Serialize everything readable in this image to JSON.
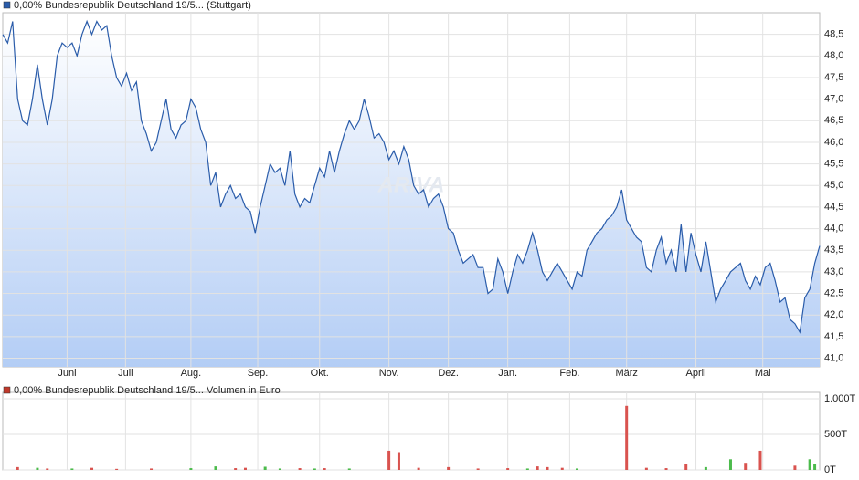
{
  "chart_data": [
    {
      "type": "line",
      "series": [
        {
          "name": "0,00% Bundesrepublik Deutschland 19/5... (Stuttgart)",
          "color": "#2a5caa",
          "values": [
            48.5,
            48.3,
            48.8,
            47.0,
            46.5,
            46.4,
            47.0,
            47.8,
            47.0,
            46.4,
            47.0,
            48.0,
            48.3,
            48.2,
            48.3,
            48.0,
            48.5,
            48.8,
            48.5,
            48.8,
            48.6,
            48.7,
            48.0,
            47.5,
            47.3,
            47.6,
            47.2,
            47.4,
            46.5,
            46.2,
            45.8,
            46.0,
            46.5,
            47.0,
            46.3,
            46.1,
            46.4,
            46.5,
            47.0,
            46.8,
            46.3,
            46.0,
            45.0,
            45.3,
            44.5,
            44.8,
            45.0,
            44.7,
            44.8,
            44.5,
            44.4,
            43.9,
            44.5,
            45.0,
            45.5,
            45.3,
            45.4,
            45.0,
            45.8,
            44.8,
            44.5,
            44.7,
            44.6,
            45.0,
            45.4,
            45.2,
            45.8,
            45.3,
            45.8,
            46.2,
            46.5,
            46.3,
            46.5,
            47.0,
            46.6,
            46.1,
            46.2,
            46.0,
            45.6,
            45.8,
            45.5,
            45.9,
            45.6,
            45.0,
            44.8,
            44.9,
            44.5,
            44.7,
            44.8,
            44.5,
            44.0,
            43.9,
            43.5,
            43.2,
            43.3,
            43.4,
            43.1,
            43.1,
            42.5,
            42.6,
            43.3,
            43.0,
            42.5,
            43.0,
            43.4,
            43.2,
            43.5,
            43.9,
            43.5,
            43.0,
            42.8,
            43.0,
            43.2,
            43.0,
            42.8,
            42.6,
            43.0,
            42.9,
            43.5,
            43.7,
            43.9,
            44.0,
            44.2,
            44.3,
            44.5,
            44.9,
            44.2,
            44.0,
            43.8,
            43.7,
            43.1,
            43.0,
            43.5,
            43.8,
            43.2,
            43.5,
            43.0,
            44.1,
            43.0,
            43.9,
            43.4,
            43.0,
            43.7,
            43.0,
            42.3,
            42.6,
            42.8,
            43.0,
            43.1,
            43.2,
            42.8,
            42.6,
            42.9,
            42.7,
            43.1,
            43.2,
            42.8,
            42.3,
            42.4,
            41.9,
            41.8,
            41.6,
            42.4,
            42.6,
            43.2,
            43.6
          ]
        }
      ],
      "xlim": [
        0,
        165
      ],
      "xticks": [
        {
          "value": 13,
          "label": "Juni"
        },
        {
          "value": 24.8,
          "label": "Juli"
        },
        {
          "value": 38,
          "label": "Aug."
        },
        {
          "value": 51.5,
          "label": "Sep."
        },
        {
          "value": 64,
          "label": "Okt."
        },
        {
          "value": 78,
          "label": "Nov."
        },
        {
          "value": 90,
          "label": "Dez."
        },
        {
          "value": 102,
          "label": "Jan."
        },
        {
          "value": 114.5,
          "label": "Feb."
        },
        {
          "value": 126,
          "label": "März"
        },
        {
          "value": 140,
          "label": "April"
        },
        {
          "value": 153.5,
          "label": "Mai"
        }
      ],
      "ylim": [
        40.8,
        49.0
      ],
      "yticks": [
        {
          "value": 41.0,
          "label": "41,0"
        },
        {
          "value": 41.5,
          "label": "41,5"
        },
        {
          "value": 42.0,
          "label": "42,0"
        },
        {
          "value": 42.5,
          "label": "42,5"
        },
        {
          "value": 43.0,
          "label": "43,0"
        },
        {
          "value": 43.5,
          "label": "43,5"
        },
        {
          "value": 44.0,
          "label": "44,0"
        },
        {
          "value": 44.5,
          "label": "44,5"
        },
        {
          "value": 45.0,
          "label": "45,0"
        },
        {
          "value": 45.5,
          "label": "45,5"
        },
        {
          "value": 46.0,
          "label": "46,0"
        },
        {
          "value": 46.5,
          "label": "46,5"
        },
        {
          "value": 47.0,
          "label": "47,0"
        },
        {
          "value": 47.5,
          "label": "47,5"
        },
        {
          "value": 48.0,
          "label": "48,0"
        },
        {
          "value": 48.5,
          "label": "48,5"
        }
      ],
      "grid": true,
      "watermark": "ARIVA"
    },
    {
      "type": "bar",
      "series": [
        {
          "name": "0,00% Bundesrepublik Deutschland 19/5... Volumen in Euro",
          "color": "#c0392b"
        }
      ],
      "up_color": "#4cbb4c",
      "down_color": "#d9534f",
      "x": [
        3,
        7,
        9,
        14,
        18,
        23,
        30,
        38,
        43,
        47,
        49,
        53,
        56,
        60,
        63,
        65,
        70,
        78,
        80,
        84,
        90,
        96,
        102,
        106,
        108,
        110,
        113,
        116,
        126,
        130,
        134,
        138,
        142,
        147,
        150,
        153,
        160,
        163,
        164
      ],
      "values": [
        40,
        30,
        20,
        20,
        30,
        15,
        20,
        25,
        50,
        25,
        30,
        45,
        20,
        25,
        20,
        25,
        20,
        270,
        250,
        30,
        40,
        20,
        25,
        20,
        50,
        40,
        30,
        20,
        900,
        30,
        25,
        80,
        40,
        150,
        100,
        270,
        60,
        150,
        80
      ],
      "ylim": [
        0,
        1000
      ],
      "yticks": [
        {
          "value": 0,
          "label": "0T"
        },
        {
          "value": 500,
          "label": "500T"
        },
        {
          "value": 1000,
          "label": "1.000T"
        }
      ]
    }
  ]
}
